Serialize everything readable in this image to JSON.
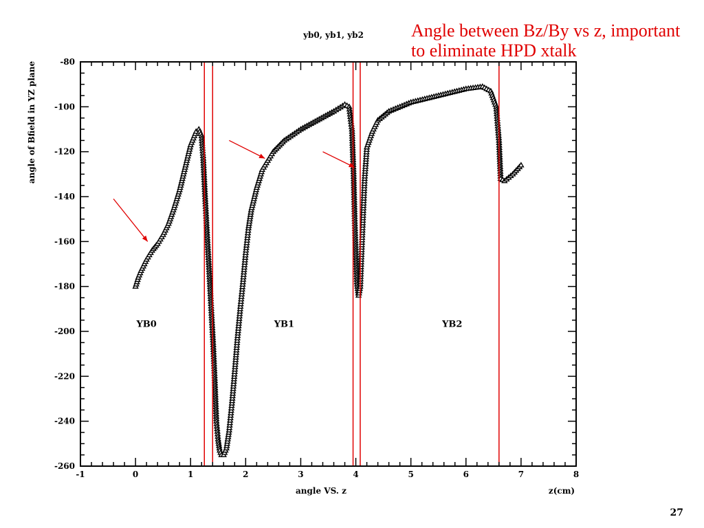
{
  "slide": {
    "annotation": "Angle between Bz/By vs z, important to eliminate HPD xtalk",
    "slide_number": "27"
  },
  "chart_data": {
    "type": "scatter",
    "title": "yb0, yb1, yb2",
    "xlabel": "angle VS. z",
    "xunit_label": "z(cm)",
    "ylabel": "angle of Bfield in YZ plane",
    "xlim": [
      -1,
      8
    ],
    "ylim": [
      -260,
      -80
    ],
    "xticks": [
      -1,
      0,
      1,
      2,
      3,
      4,
      5,
      6,
      7,
      8
    ],
    "yticks": [
      -260,
      -240,
      -220,
      -200,
      -180,
      -160,
      -140,
      -120,
      -100,
      -80
    ],
    "grid": false,
    "marker": "triangle",
    "colors": {
      "points": "#000000",
      "lines": "#e00000",
      "arrows": "#e00000"
    },
    "region_labels": [
      {
        "text": "YB0",
        "x": 0.2,
        "y": -198
      },
      {
        "text": "YB1",
        "x": 2.7,
        "y": -198
      },
      {
        "text": "YB2",
        "x": 5.75,
        "y": -198
      }
    ],
    "vlines": [
      1.25,
      1.4,
      3.95,
      4.08,
      6.6
    ],
    "arrows": [
      {
        "from": [
          -0.4,
          -141
        ],
        "to": [
          0.22,
          -160
        ]
      },
      {
        "from": [
          1.7,
          -115
        ],
        "to": [
          2.35,
          -123
        ]
      },
      {
        "from": [
          3.4,
          -120
        ],
        "to": [
          3.98,
          -127
        ]
      }
    ],
    "series": [
      {
        "points": [
          [
            0,
            -180
          ],
          [
            0.05,
            -176
          ],
          [
            0.1,
            -173
          ],
          [
            0.2,
            -168
          ],
          [
            0.3,
            -164
          ],
          [
            0.4,
            -161
          ],
          [
            0.5,
            -157
          ],
          [
            0.6,
            -152
          ],
          [
            0.7,
            -145
          ],
          [
            0.8,
            -137
          ],
          [
            0.9,
            -127
          ],
          [
            1.0,
            -117
          ],
          [
            1.1,
            -111
          ],
          [
            1.15,
            -110
          ],
          [
            1.2,
            -113
          ],
          [
            1.23,
            -123
          ],
          [
            1.26,
            -138
          ],
          [
            1.29,
            -152
          ],
          [
            1.32,
            -165
          ],
          [
            1.35,
            -178
          ],
          [
            1.38,
            -192
          ],
          [
            1.41,
            -205
          ],
          [
            1.44,
            -222
          ],
          [
            1.47,
            -240
          ],
          [
            1.5,
            -248
          ],
          [
            1.53,
            -253
          ],
          [
            1.56,
            -255
          ],
          [
            1.6,
            -255
          ],
          [
            1.65,
            -252
          ],
          [
            1.7,
            -244
          ],
          [
            1.75,
            -232
          ],
          [
            1.8,
            -218
          ],
          [
            1.85,
            -203
          ],
          [
            1.9,
            -190
          ],
          [
            1.95,
            -178
          ],
          [
            2.0,
            -165
          ],
          [
            2.05,
            -154
          ],
          [
            2.1,
            -146
          ],
          [
            2.2,
            -136
          ],
          [
            2.3,
            -128
          ],
          [
            2.4,
            -124
          ],
          [
            2.5,
            -120
          ],
          [
            2.7,
            -115
          ],
          [
            3.0,
            -110
          ],
          [
            3.3,
            -106
          ],
          [
            3.6,
            -102
          ],
          [
            3.8,
            -99
          ],
          [
            3.88,
            -100
          ],
          [
            3.93,
            -110
          ],
          [
            3.96,
            -130
          ],
          [
            3.98,
            -150
          ],
          [
            4.0,
            -165
          ],
          [
            4.02,
            -178
          ],
          [
            4.05,
            -184
          ],
          [
            4.08,
            -180
          ],
          [
            4.12,
            -155
          ],
          [
            4.16,
            -132
          ],
          [
            4.2,
            -118
          ],
          [
            4.3,
            -111
          ],
          [
            4.4,
            -106
          ],
          [
            4.6,
            -102
          ],
          [
            5.0,
            -98
          ],
          [
            5.5,
            -95
          ],
          [
            6.0,
            -92
          ],
          [
            6.3,
            -91
          ],
          [
            6.45,
            -93
          ],
          [
            6.55,
            -100
          ],
          [
            6.6,
            -115
          ],
          [
            6.63,
            -132
          ],
          [
            6.7,
            -133
          ],
          [
            6.85,
            -130
          ],
          [
            7.0,
            -126
          ]
        ]
      }
    ]
  }
}
